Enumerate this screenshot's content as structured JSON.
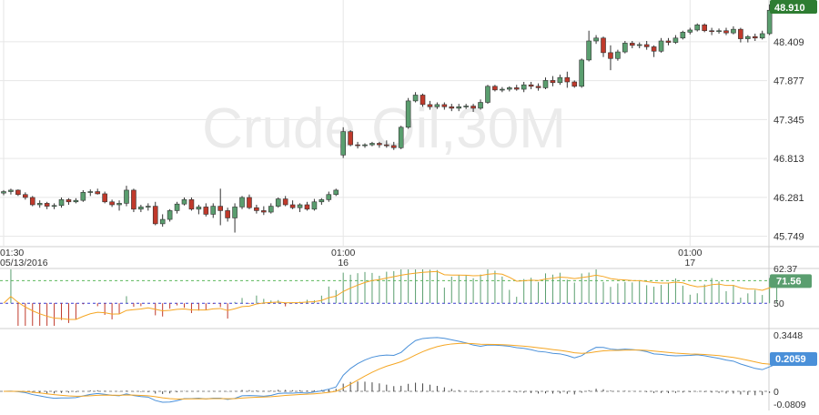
{
  "watermark": "Crude Oil,30M",
  "chart_data": {
    "type": "candlestick",
    "title": "",
    "price_axis": {
      "ticks": [
        "48.409",
        "47.877",
        "47.345",
        "46.813",
        "46.281",
        "45.749"
      ],
      "tick_values": [
        48.409,
        47.877,
        47.345,
        46.813,
        46.281,
        45.749
      ],
      "ylim": [
        45.62,
        48.98
      ],
      "last_price": "48.910",
      "last_price_color": "#2e7d32"
    },
    "time_axis": {
      "labels": [
        {
          "time": "01:30",
          "date": "05/13/2016",
          "bar": 0
        },
        {
          "time": "01:00",
          "date": "16",
          "bar": 47
        },
        {
          "time": "01:00",
          "date": "17",
          "bar": 95
        }
      ]
    },
    "colors": {
      "up": "#5a9e6f",
      "down": "#c0392b",
      "ma": "#f5a623",
      "grid": "#e6e6e6",
      "macd": "#4a90d9",
      "level_green": "#5cb85c",
      "level_blue": "#3b3bd1"
    },
    "candles": [
      [
        46.34,
        46.38,
        46.31,
        46.36
      ],
      [
        46.36,
        46.4,
        46.32,
        46.38
      ],
      [
        46.38,
        46.39,
        46.3,
        46.32
      ],
      [
        46.32,
        46.35,
        46.25,
        46.28
      ],
      [
        46.28,
        46.3,
        46.16,
        46.18
      ],
      [
        46.18,
        46.24,
        46.14,
        46.2
      ],
      [
        46.2,
        46.22,
        46.12,
        46.16
      ],
      [
        46.16,
        46.2,
        46.12,
        46.17
      ],
      [
        46.17,
        46.28,
        46.14,
        46.25
      ],
      [
        46.25,
        46.27,
        46.18,
        46.22
      ],
      [
        46.22,
        46.27,
        46.2,
        46.24
      ],
      [
        46.24,
        46.38,
        46.22,
        46.35
      ],
      [
        46.35,
        46.39,
        46.3,
        46.36
      ],
      [
        46.36,
        46.4,
        46.32,
        46.33
      ],
      [
        46.33,
        46.36,
        46.2,
        46.22
      ],
      [
        46.22,
        46.25,
        46.15,
        46.18
      ],
      [
        46.18,
        46.24,
        46.1,
        46.2
      ],
      [
        46.2,
        46.44,
        46.16,
        46.38
      ],
      [
        46.38,
        46.4,
        46.08,
        46.12
      ],
      [
        46.12,
        46.18,
        46.08,
        46.15
      ],
      [
        46.15,
        46.2,
        46.1,
        46.16
      ],
      [
        46.16,
        46.22,
        45.9,
        45.92
      ],
      [
        45.92,
        46.05,
        45.88,
        45.98
      ],
      [
        45.98,
        46.12,
        45.95,
        46.1
      ],
      [
        46.1,
        46.22,
        46.06,
        46.19
      ],
      [
        46.19,
        46.28,
        46.17,
        46.25
      ],
      [
        46.25,
        46.28,
        46.1,
        46.12
      ],
      [
        46.12,
        46.18,
        46.05,
        46.15
      ],
      [
        46.15,
        46.2,
        46.02,
        46.05
      ],
      [
        46.05,
        46.2,
        46.0,
        46.16
      ],
      [
        46.16,
        46.4,
        45.9,
        46.1
      ],
      [
        46.1,
        46.14,
        45.95,
        46.0
      ],
      [
        46.0,
        46.2,
        45.8,
        46.15
      ],
      [
        46.15,
        46.3,
        46.12,
        46.28
      ],
      [
        46.28,
        46.32,
        46.12,
        46.14
      ],
      [
        46.14,
        46.18,
        46.06,
        46.1
      ],
      [
        46.1,
        46.16,
        46.04,
        46.08
      ],
      [
        46.08,
        46.2,
        46.06,
        46.16
      ],
      [
        46.16,
        46.28,
        46.14,
        46.26
      ],
      [
        46.26,
        46.3,
        46.16,
        46.18
      ],
      [
        46.18,
        46.24,
        46.12,
        46.14
      ],
      [
        46.14,
        46.2,
        46.08,
        46.18
      ],
      [
        46.18,
        46.22,
        46.1,
        46.12
      ],
      [
        46.12,
        46.26,
        46.1,
        46.22
      ],
      [
        46.22,
        46.27,
        46.18,
        46.25
      ],
      [
        46.25,
        46.36,
        46.22,
        46.32
      ],
      [
        46.32,
        46.4,
        46.3,
        46.38
      ],
      [
        46.86,
        47.24,
        46.82,
        47.18
      ],
      [
        47.18,
        47.2,
        46.98,
        47.0
      ],
      [
        47.0,
        47.04,
        46.95,
        46.99
      ],
      [
        46.99,
        47.02,
        46.96,
        47.0
      ],
      [
        47.0,
        47.04,
        46.98,
        47.02
      ],
      [
        47.02,
        47.04,
        46.96,
        47.0
      ],
      [
        47.0,
        47.06,
        46.96,
        46.99
      ],
      [
        46.99,
        47.04,
        46.93,
        46.96
      ],
      [
        46.96,
        47.26,
        46.94,
        47.24
      ],
      [
        47.24,
        47.64,
        47.22,
        47.6
      ],
      [
        47.6,
        47.72,
        47.58,
        47.68
      ],
      [
        47.68,
        47.7,
        47.52,
        47.55
      ],
      [
        47.55,
        47.6,
        47.48,
        47.52
      ],
      [
        47.52,
        47.58,
        47.49,
        47.55
      ],
      [
        47.55,
        47.58,
        47.48,
        47.52
      ],
      [
        47.52,
        47.56,
        47.46,
        47.5
      ],
      [
        47.5,
        47.56,
        47.46,
        47.52
      ],
      [
        47.52,
        47.56,
        47.49,
        47.53
      ],
      [
        47.53,
        47.56,
        47.45,
        47.5
      ],
      [
        47.5,
        47.62,
        47.48,
        47.58
      ],
      [
        47.58,
        47.82,
        47.56,
        47.8
      ],
      [
        47.8,
        47.82,
        47.73,
        47.75
      ],
      [
        47.75,
        47.79,
        47.72,
        47.76
      ],
      [
        47.76,
        47.8,
        47.73,
        47.78
      ],
      [
        47.78,
        47.82,
        47.74,
        47.76
      ],
      [
        47.76,
        47.86,
        47.72,
        47.82
      ],
      [
        47.82,
        47.86,
        47.76,
        47.8
      ],
      [
        47.8,
        47.84,
        47.74,
        47.78
      ],
      [
        47.78,
        47.92,
        47.76,
        47.88
      ],
      [
        47.88,
        47.94,
        47.8,
        47.85
      ],
      [
        47.85,
        47.96,
        47.82,
        47.92
      ],
      [
        47.92,
        48.0,
        47.78,
        47.86
      ],
      [
        47.86,
        47.88,
        47.78,
        47.8
      ],
      [
        47.8,
        48.18,
        47.78,
        48.16
      ],
      [
        48.16,
        48.56,
        48.14,
        48.42
      ],
      [
        48.42,
        48.5,
        48.38,
        48.46
      ],
      [
        48.46,
        48.48,
        48.2,
        48.26
      ],
      [
        48.26,
        48.36,
        48.02,
        48.18
      ],
      [
        48.18,
        48.3,
        48.15,
        48.27
      ],
      [
        48.27,
        48.42,
        48.25,
        48.39
      ],
      [
        48.39,
        48.42,
        48.32,
        48.36
      ],
      [
        48.36,
        48.4,
        48.32,
        48.37
      ],
      [
        48.37,
        48.42,
        48.3,
        48.34
      ],
      [
        48.34,
        48.36,
        48.2,
        48.28
      ],
      [
        48.28,
        48.46,
        48.26,
        48.42
      ],
      [
        48.42,
        48.46,
        48.36,
        48.4
      ],
      [
        48.4,
        48.5,
        48.38,
        48.46
      ],
      [
        48.46,
        48.56,
        48.44,
        48.54
      ],
      [
        48.54,
        48.6,
        48.51,
        48.57
      ],
      [
        48.57,
        48.66,
        48.55,
        48.64
      ],
      [
        48.64,
        48.66,
        48.54,
        48.56
      ],
      [
        48.56,
        48.6,
        48.5,
        48.55
      ],
      [
        48.55,
        48.59,
        48.52,
        48.56
      ],
      [
        48.56,
        48.6,
        48.5,
        48.53
      ],
      [
        48.53,
        48.62,
        48.51,
        48.58
      ],
      [
        48.58,
        48.6,
        48.4,
        48.45
      ],
      [
        48.45,
        48.5,
        48.4,
        48.48
      ],
      [
        48.48,
        48.52,
        48.42,
        48.46
      ],
      [
        48.46,
        48.56,
        48.44,
        48.52
      ],
      [
        48.52,
        48.92,
        48.5,
        48.84
      ],
      [
        48.84,
        48.96,
        48.82,
        48.91
      ]
    ],
    "rsi": {
      "ticks": [
        "62.37",
        "50"
      ],
      "levels": [
        70,
        50
      ],
      "last_value": "71.56",
      "last_value_color": "#5a9e6f"
    },
    "macd": {
      "ticks": [
        "0.3448",
        "0",
        "-0.0809"
      ],
      "last_value": "0.2059",
      "last_value_color": "#4a90d9"
    }
  }
}
